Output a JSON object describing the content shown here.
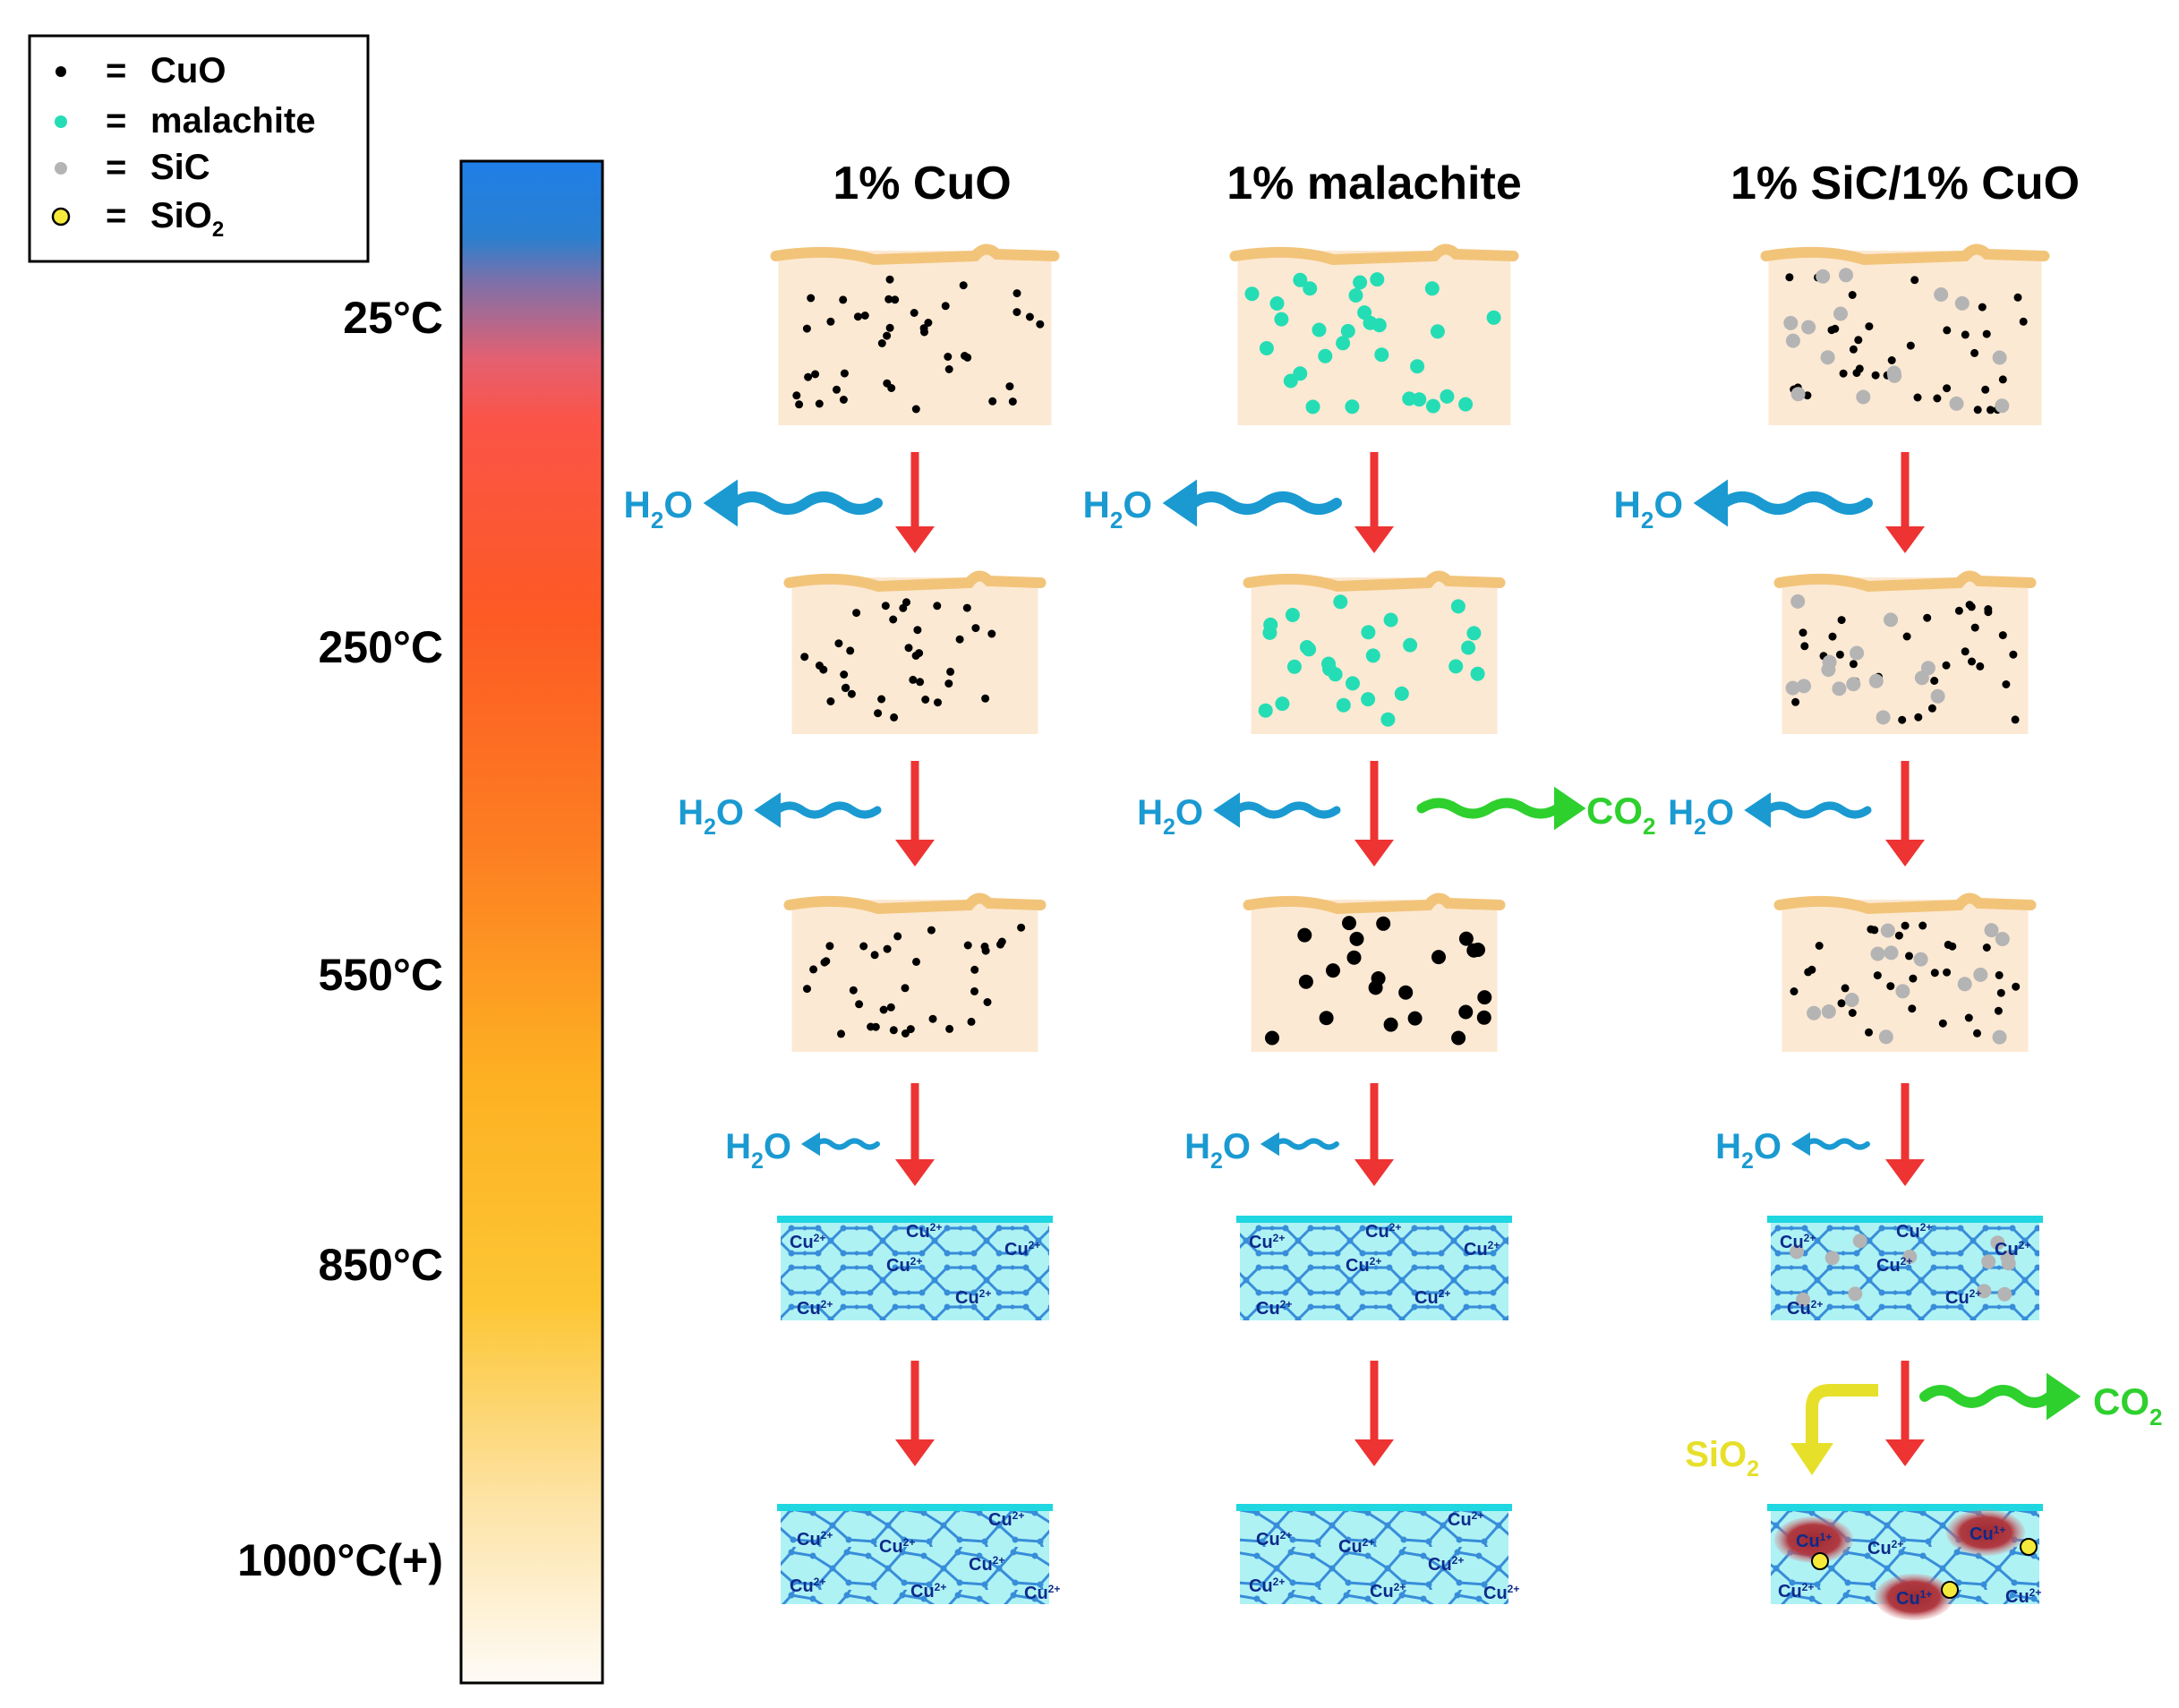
{
  "legend": {
    "eq": "=",
    "items": [
      {
        "label": "CuO"
      },
      {
        "label": "malachite"
      },
      {
        "label": "SiC"
      },
      {
        "label": "SiO",
        "sub": "2"
      }
    ]
  },
  "temperature_scale": {
    "labels": [
      "25°C",
      "250°C",
      "550°C",
      "850°C",
      "1000°C(+)"
    ]
  },
  "columns": [
    {
      "title": "1% CuO"
    },
    {
      "title": "1% malachite"
    },
    {
      "title": "1% SiC/1% CuO"
    }
  ],
  "species": {
    "water": {
      "main": "H",
      "sub": "2",
      "tail": "O"
    },
    "co2": {
      "main": "CO",
      "sub": "2"
    },
    "sio2": {
      "main": "SiO",
      "sub": "2"
    }
  },
  "ions": {
    "cu2": {
      "main": "Cu",
      "sup": "2+"
    },
    "cu1": {
      "main": "Cu",
      "sup": "1+"
    }
  },
  "colors": {
    "water_blue": "#1a9ad1",
    "co2_green": "#2ed02e",
    "sio2_yellow": "#e7e02a",
    "arrow_red": "#ee3333",
    "sample_fill": "#fce9d3",
    "sample_crust": "#f2c47a",
    "glass_fill": "#aef2f4",
    "glass_edge": "#1ed7e0",
    "network": "#2b82d6",
    "malachite": "#24ddb5",
    "sic": "#b4b4b4",
    "sio2_dot": "#f5ea3a",
    "cu1_blob": "#a8333a"
  }
}
